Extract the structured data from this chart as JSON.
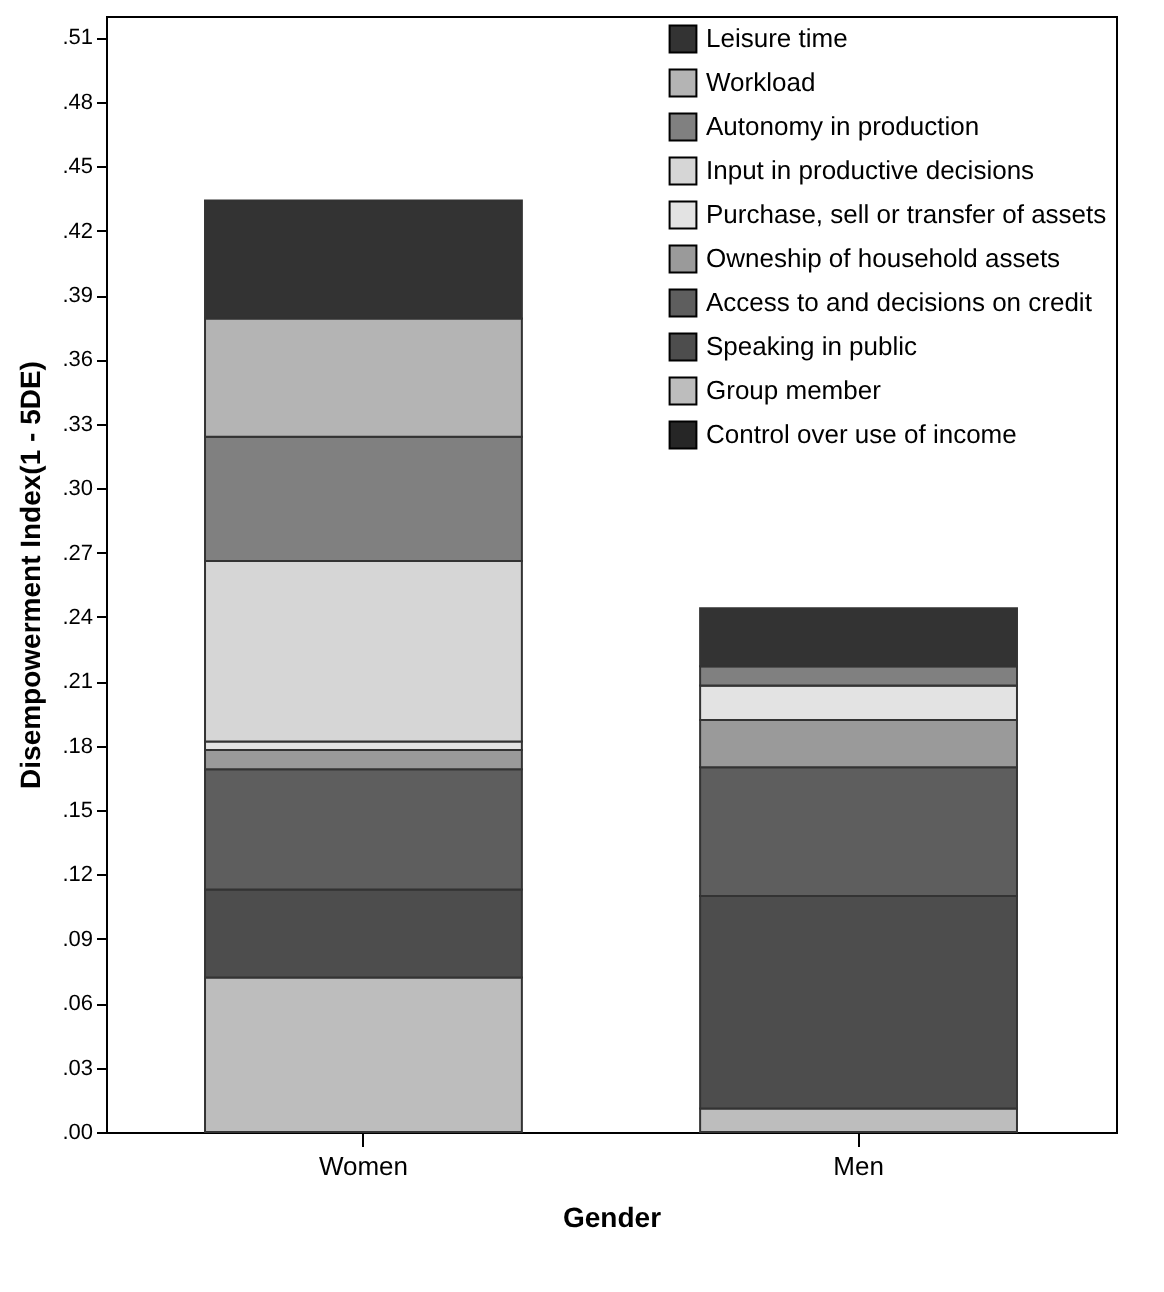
{
  "chart_data": {
    "type": "bar",
    "stacked": true,
    "xlabel": "Gender",
    "ylabel": "Disempowerment Index(1 - 5DE)",
    "categories": [
      "Women",
      "Men"
    ],
    "series": [
      {
        "name": "Control over use of income",
        "color": "#262626",
        "values": [
          0,
          0
        ]
      },
      {
        "name": "Group member",
        "color": "#bdbdbd",
        "values": [
          0.072,
          0.011
        ]
      },
      {
        "name": "Speaking in public",
        "color": "#4d4d4d",
        "values": [
          0.041,
          0.099
        ]
      },
      {
        "name": "Access to and decisions on credit",
        "color": "#5e5e5e",
        "values": [
          0.056,
          0.06
        ]
      },
      {
        "name": "Owneship of household assets",
        "color": "#9a9a9a",
        "values": [
          0.009,
          0.022
        ]
      },
      {
        "name": "Purchase, sell or transfer of assets",
        "color": "#e3e3e3",
        "values": [
          0.004,
          0.016
        ]
      },
      {
        "name": "Input in productive decisions",
        "color": "#d6d6d6",
        "values": [
          0.084,
          0
        ]
      },
      {
        "name": "Autonomy in production",
        "color": "#808080",
        "values": [
          0.058,
          0.009
        ]
      },
      {
        "name": "Workload",
        "color": "#b4b4b4",
        "values": [
          0.055,
          0
        ]
      },
      {
        "name": "Leisure time",
        "color": "#333333",
        "values": [
          0.055,
          0.027
        ]
      }
    ],
    "ylim": [
      0,
      0.52
    ],
    "yticks": [
      {
        "value": 0,
        "label": ".00"
      },
      {
        "value": 0.03,
        "label": ".03"
      },
      {
        "value": 0.06,
        "label": ".06"
      },
      {
        "value": 0.09,
        "label": ".09"
      },
      {
        "value": 0.12,
        "label": ".12"
      },
      {
        "value": 0.15,
        "label": ".15"
      },
      {
        "value": 0.18,
        "label": ".18"
      },
      {
        "value": 0.21,
        "label": ".21"
      },
      {
        "value": 0.24,
        "label": ".24"
      },
      {
        "value": 0.27,
        "label": ".27"
      },
      {
        "value": 0.3,
        "label": ".30"
      },
      {
        "value": 0.33,
        "label": ".33"
      },
      {
        "value": 0.36,
        "label": ".36"
      },
      {
        "value": 0.39,
        "label": ".39"
      },
      {
        "value": 0.42,
        "label": ".42"
      },
      {
        "value": 0.45,
        "label": ".45"
      },
      {
        "value": 0.48,
        "label": ".48"
      },
      {
        "value": 0.51,
        "label": ".51"
      }
    ],
    "grid": false,
    "legend": "top right"
  }
}
